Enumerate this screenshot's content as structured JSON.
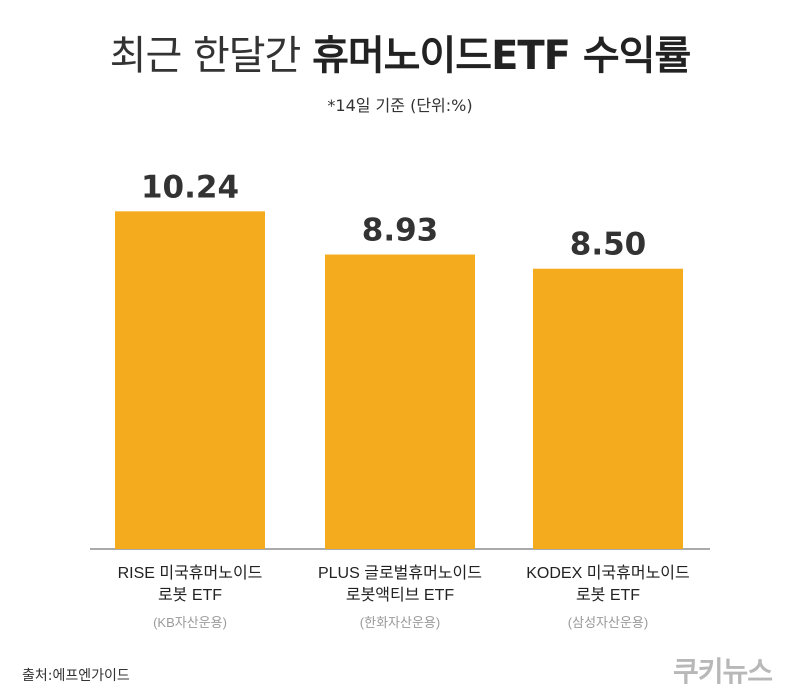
{
  "title": {
    "light": "최근 한달간",
    "bold": "휴머노이드ETF 수익률"
  },
  "subtitle": "*14일 기준 (단위:%)",
  "chart_data": {
    "type": "bar",
    "categories": [
      {
        "line1": "RISE 미국휴머노이드",
        "line2": "로봇 ETF",
        "company": "(KB자산운용)"
      },
      {
        "line1": "PLUS 글로벌휴머노이드",
        "line2": "로봇액티브 ETF",
        "company": "(한화자산운용)"
      },
      {
        "line1": "KODEX 미국휴머노이드",
        "line2": "로봇 ETF",
        "company": "(삼성자산운용)"
      }
    ],
    "values": [
      10.24,
      8.93,
      8.5
    ],
    "value_labels": [
      "10.24",
      "8.93",
      "8.50"
    ],
    "ylim": [
      0,
      12.1
    ],
    "bar_color": "#F4AB1E",
    "grid": false
  },
  "source": "출처:에프엔가이드",
  "logo": "쿠키뉴스"
}
